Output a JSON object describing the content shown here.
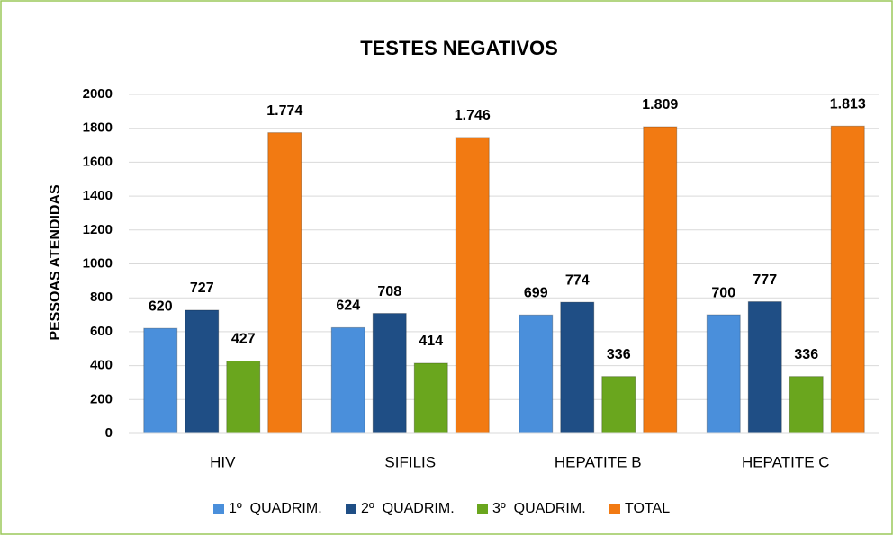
{
  "chart_data": {
    "type": "bar",
    "title": "TESTES NEGATIVOS",
    "y_label": "PESSOAS ATENDIDAS",
    "categories": [
      "HIV",
      "SIFILIS",
      "HEPATITE B",
      "HEPATITE C"
    ],
    "series": [
      {
        "name": "1º  QUADRIM.",
        "color": "#4a8fdb",
        "values": [
          620,
          624,
          699,
          700
        ]
      },
      {
        "name": "2º  QUADRIM.",
        "color": "#1f4e85",
        "values": [
          727,
          708,
          774,
          777
        ]
      },
      {
        "name": "3º  QUADRIM.",
        "color": "#6aa61e",
        "values": [
          427,
          414,
          336,
          336
        ]
      },
      {
        "name": "TOTAL",
        "color": "#f27a12",
        "values": [
          1774,
          1746,
          1809,
          1813
        ],
        "value_labels": [
          "1.774",
          "1.746",
          "1.809",
          "1.813"
        ]
      }
    ],
    "ylim": [
      0,
      2000
    ],
    "yticks": [
      0,
      200,
      400,
      600,
      800,
      1000,
      1200,
      1400,
      1600,
      1800,
      2000
    ],
    "grid": true,
    "legend": "bottom"
  }
}
